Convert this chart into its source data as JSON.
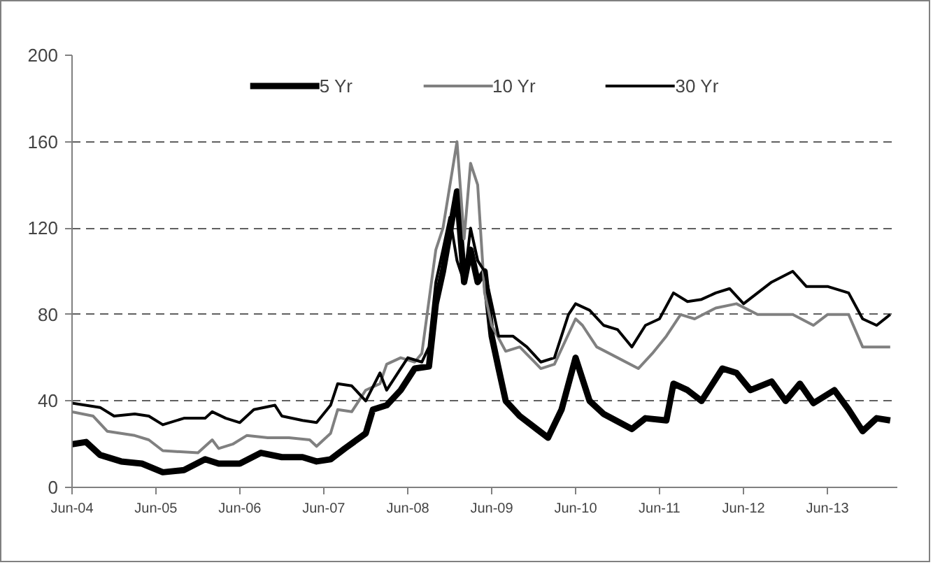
{
  "chart_data": {
    "type": "line",
    "legend": "top",
    "grid": "y",
    "line_style": "solid",
    "marker": "none",
    "xlim": [
      "2004-06-01",
      "2014-04-01"
    ],
    "ylim": [
      0,
      200
    ],
    "yticks": [
      0,
      40,
      80,
      120,
      160,
      200
    ],
    "xticks": [
      {
        "value": "2004-06-01",
        "label": "Jun-04"
      },
      {
        "value": "2005-06-01",
        "label": "Jun-05"
      },
      {
        "value": "2006-06-01",
        "label": "Jun-06"
      },
      {
        "value": "2007-06-01",
        "label": "Jun-07"
      },
      {
        "value": "2008-06-01",
        "label": "Jun-08"
      },
      {
        "value": "2009-06-01",
        "label": "Jun-09"
      },
      {
        "value": "2010-06-01",
        "label": "Jun-10"
      },
      {
        "value": "2011-06-01",
        "label": "Jun-11"
      },
      {
        "value": "2012-06-01",
        "label": "Jun-12"
      },
      {
        "value": "2013-06-01",
        "label": "Jun-13"
      }
    ],
    "series": [
      {
        "name": "5 Yr",
        "color": "#000000",
        "x": [
          "2004-06",
          "2004-08",
          "2004-10",
          "2005-01",
          "2005-04",
          "2005-07",
          "2005-10",
          "2006-01",
          "2006-03",
          "2006-06",
          "2006-09",
          "2006-12",
          "2007-03",
          "2007-05",
          "2007-07",
          "2007-09",
          "2007-12",
          "2008-01",
          "2008-03",
          "2008-05",
          "2008-07",
          "2008-09",
          "2008-10",
          "2008-11",
          "2009-01",
          "2009-02",
          "2009-03",
          "2009-04",
          "2009-05",
          "2009-06",
          "2009-07",
          "2009-08",
          "2009-10",
          "2010-02",
          "2010-04",
          "2010-06",
          "2010-08",
          "2010-10",
          "2011-02",
          "2011-04",
          "2011-07",
          "2011-08",
          "2011-10",
          "2011-12",
          "2012-03",
          "2012-05",
          "2012-07",
          "2012-10",
          "2012-12",
          "2013-02",
          "2013-04",
          "2013-07",
          "2013-09",
          "2013-11",
          "2014-01",
          "2014-03"
        ],
        "values": [
          20,
          21,
          15,
          12,
          11,
          7,
          8,
          13,
          11,
          11,
          16,
          14,
          14,
          12,
          13,
          18,
          25,
          36,
          38,
          45,
          55,
          56,
          85,
          100,
          137,
          95,
          110,
          95,
          100,
          70,
          55,
          40,
          33,
          23,
          36,
          60,
          40,
          34,
          27,
          32,
          31,
          48,
          45,
          40,
          55,
          53,
          45,
          49,
          40,
          48,
          39,
          45,
          36,
          26,
          32,
          31
        ]
      },
      {
        "name": "10 Yr",
        "color": "#808080",
        "x": [
          "2004-06",
          "2004-09",
          "2004-11",
          "2005-03",
          "2005-05",
          "2005-07",
          "2005-12",
          "2006-02",
          "2006-03",
          "2006-05",
          "2006-07",
          "2006-10",
          "2007-01",
          "2007-04",
          "2007-05",
          "2007-07",
          "2007-08",
          "2007-10",
          "2007-12",
          "2008-02",
          "2008-03",
          "2008-05",
          "2008-07",
          "2008-08",
          "2008-10",
          "2008-11",
          "2009-01",
          "2009-02",
          "2009-03",
          "2009-04",
          "2009-05",
          "2009-06",
          "2009-08",
          "2009-10",
          "2010-01",
          "2010-03",
          "2010-06",
          "2010-07",
          "2010-09",
          "2010-12",
          "2011-03",
          "2011-05",
          "2011-07",
          "2011-09",
          "2011-11",
          "2012-02",
          "2012-05",
          "2012-08",
          "2012-10",
          "2013-01",
          "2013-04",
          "2013-06",
          "2013-09",
          "2013-11",
          "2014-01",
          "2014-03"
        ],
        "values": [
          35,
          33,
          26,
          24,
          22,
          17,
          16,
          22,
          18,
          20,
          24,
          23,
          23,
          22,
          19,
          25,
          36,
          35,
          45,
          48,
          57,
          60,
          58,
          62,
          110,
          120,
          160,
          115,
          150,
          140,
          90,
          75,
          63,
          65,
          55,
          57,
          78,
          75,
          65,
          60,
          55,
          62,
          70,
          80,
          78,
          83,
          85,
          80,
          80,
          80,
          75,
          80,
          80,
          65,
          65,
          65
        ]
      },
      {
        "name": "30 Yr",
        "color": "#000000",
        "x": [
          "2004-06",
          "2004-10",
          "2004-12",
          "2005-03",
          "2005-05",
          "2005-07",
          "2005-10",
          "2006-01",
          "2006-02",
          "2006-04",
          "2006-06",
          "2006-08",
          "2006-11",
          "2006-12",
          "2007-03",
          "2007-05",
          "2007-07",
          "2007-08",
          "2007-10",
          "2007-12",
          "2008-02",
          "2008-03",
          "2008-05",
          "2008-06",
          "2008-08",
          "2008-09",
          "2008-10",
          "2008-11",
          "2008-12",
          "2009-01",
          "2009-02",
          "2009-03",
          "2009-04",
          "2009-05",
          "2009-06",
          "2009-07",
          "2009-09",
          "2009-11",
          "2010-01",
          "2010-03",
          "2010-05",
          "2010-06",
          "2010-08",
          "2010-10",
          "2010-12",
          "2011-02",
          "2011-04",
          "2011-06",
          "2011-08",
          "2011-10",
          "2011-12",
          "2012-02",
          "2012-04",
          "2012-06",
          "2012-08",
          "2012-10",
          "2013-01",
          "2013-03",
          "2013-06",
          "2013-09",
          "2013-11",
          "2014-01",
          "2014-03"
        ],
        "values": [
          39,
          37,
          33,
          34,
          33,
          29,
          32,
          32,
          35,
          32,
          30,
          36,
          38,
          33,
          31,
          30,
          38,
          48,
          47,
          40,
          53,
          45,
          55,
          60,
          58,
          65,
          95,
          110,
          125,
          105,
          95,
          120,
          105,
          100,
          85,
          70,
          70,
          65,
          58,
          60,
          80,
          85,
          82,
          75,
          73,
          65,
          75,
          78,
          90,
          86,
          87,
          90,
          92,
          85,
          90,
          95,
          100,
          93,
          93,
          90,
          78,
          75,
          80
        ]
      }
    ]
  }
}
